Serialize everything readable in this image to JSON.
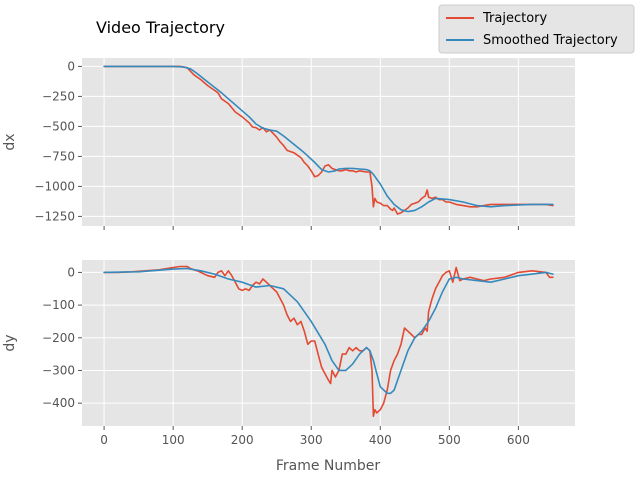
{
  "figure": {
    "title": "Video Trajectory",
    "background": "#ffffff",
    "axes_facecolor": "#e5e5e5",
    "grid_color": "#ffffff"
  },
  "chart_data": [
    {
      "type": "line",
      "title": "Video Trajectory",
      "xlabel": "",
      "ylabel": "dx",
      "xlim": [
        -32,
        682
      ],
      "ylim": [
        -1330,
        70
      ],
      "xticks": [
        0,
        100,
        200,
        300,
        400,
        500,
        600
      ],
      "yticks": [
        0,
        -250,
        -500,
        -750,
        -1000,
        -1250
      ],
      "grid": true,
      "legend": "top-right",
      "series": [
        {
          "name": "Trajectory",
          "color": "#e24a33",
          "x": [
            0,
            20,
            40,
            60,
            80,
            100,
            110,
            120,
            125,
            130,
            140,
            150,
            160,
            165,
            170,
            180,
            190,
            200,
            210,
            215,
            220,
            225,
            230,
            235,
            240,
            245,
            250,
            255,
            260,
            265,
            270,
            275,
            280,
            285,
            290,
            295,
            300,
            305,
            310,
            315,
            320,
            325,
            330,
            335,
            340,
            345,
            350,
            355,
            360,
            365,
            370,
            375,
            380,
            385,
            388,
            390,
            392,
            395,
            400,
            405,
            410,
            415,
            418,
            420,
            425,
            430,
            435,
            440,
            445,
            450,
            455,
            460,
            465,
            468,
            470,
            475,
            480,
            485,
            490,
            495,
            500,
            510,
            520,
            530,
            540,
            550,
            560,
            580,
            600,
            620,
            640,
            650
          ],
          "values": [
            0,
            0,
            0,
            0,
            0,
            0,
            0,
            -10,
            -40,
            -70,
            -110,
            -160,
            -200,
            -220,
            -270,
            -310,
            -380,
            -420,
            -470,
            -505,
            -510,
            -530,
            -510,
            -545,
            -530,
            -560,
            -590,
            -630,
            -660,
            -700,
            -710,
            -720,
            -740,
            -760,
            -800,
            -830,
            -870,
            -920,
            -910,
            -880,
            -830,
            -820,
            -850,
            -860,
            -870,
            -870,
            -860,
            -870,
            -870,
            -880,
            -870,
            -875,
            -880,
            -880,
            -1000,
            -1170,
            -1100,
            -1130,
            -1140,
            -1160,
            -1160,
            -1190,
            -1200,
            -1180,
            -1230,
            -1220,
            -1200,
            -1180,
            -1150,
            -1140,
            -1130,
            -1100,
            -1080,
            -1030,
            -1090,
            -1100,
            -1090,
            -1110,
            -1110,
            -1130,
            -1130,
            -1150,
            -1160,
            -1170,
            -1170,
            -1160,
            -1150,
            -1150,
            -1150,
            -1150,
            -1150,
            -1160
          ]
        },
        {
          "name": "Smoothed Trajectory",
          "color": "#348abd",
          "x": [
            0,
            50,
            100,
            115,
            125,
            135,
            150,
            170,
            190,
            210,
            220,
            230,
            240,
            250,
            260,
            275,
            290,
            305,
            315,
            325,
            335,
            340,
            350,
            360,
            370,
            380,
            385,
            390,
            395,
            400,
            410,
            420,
            430,
            440,
            450,
            460,
            470,
            480,
            500,
            520,
            540,
            560,
            580,
            600,
            620,
            640,
            650
          ],
          "values": [
            0,
            0,
            0,
            -5,
            -20,
            -60,
            -130,
            -220,
            -320,
            -420,
            -480,
            -515,
            -530,
            -540,
            -580,
            -650,
            -720,
            -800,
            -860,
            -880,
            -870,
            -855,
            -850,
            -850,
            -855,
            -860,
            -870,
            -900,
            -940,
            -980,
            -1080,
            -1150,
            -1195,
            -1210,
            -1200,
            -1170,
            -1130,
            -1100,
            -1110,
            -1130,
            -1160,
            -1170,
            -1160,
            -1155,
            -1150,
            -1150,
            -1150
          ]
        }
      ]
    },
    {
      "type": "line",
      "xlabel": "Frame Number",
      "ylabel": "dy",
      "xlim": [
        -32,
        682
      ],
      "ylim": [
        -470,
        38
      ],
      "xticks": [
        0,
        100,
        200,
        300,
        400,
        500,
        600
      ],
      "yticks": [
        0,
        -100,
        -200,
        -300,
        -400
      ],
      "grid": true,
      "series": [
        {
          "name": "Trajectory",
          "color": "#e24a33",
          "x": [
            0,
            20,
            40,
            60,
            80,
            100,
            110,
            120,
            125,
            130,
            135,
            140,
            150,
            160,
            165,
            170,
            175,
            180,
            185,
            190,
            195,
            200,
            205,
            210,
            215,
            220,
            225,
            230,
            235,
            240,
            245,
            250,
            255,
            260,
            265,
            270,
            275,
            280,
            285,
            290,
            295,
            300,
            305,
            310,
            315,
            320,
            325,
            328,
            330,
            335,
            340,
            345,
            350,
            355,
            360,
            365,
            370,
            375,
            380,
            385,
            388,
            390,
            392,
            395,
            400,
            405,
            410,
            415,
            420,
            425,
            430,
            435,
            440,
            445,
            450,
            455,
            460,
            465,
            468,
            470,
            475,
            480,
            485,
            490,
            495,
            500,
            505,
            510,
            515,
            520,
            530,
            540,
            550,
            560,
            580,
            600,
            620,
            640,
            645,
            650
          ],
          "values": [
            0,
            0,
            2,
            5,
            8,
            15,
            18,
            18,
            12,
            8,
            5,
            0,
            -10,
            -15,
            0,
            5,
            -10,
            5,
            -10,
            -30,
            -50,
            -55,
            -50,
            -55,
            -40,
            -30,
            -35,
            -20,
            -30,
            -40,
            -50,
            -60,
            -80,
            -100,
            -130,
            -150,
            -140,
            -160,
            -150,
            -180,
            -220,
            -210,
            -210,
            -250,
            -290,
            -310,
            -330,
            -340,
            -300,
            -320,
            -300,
            -250,
            -250,
            -230,
            -240,
            -230,
            -240,
            -240,
            -230,
            -240,
            -300,
            -440,
            -420,
            -430,
            -420,
            -400,
            -360,
            -300,
            -270,
            -250,
            -220,
            -170,
            -180,
            -190,
            -200,
            -190,
            -190,
            -170,
            -180,
            -120,
            -80,
            -50,
            -30,
            -10,
            0,
            5,
            -30,
            15,
            -25,
            -20,
            -15,
            -20,
            -25,
            -20,
            -15,
            0,
            5,
            0,
            -15,
            -15
          ]
        },
        {
          "name": "Smoothed Trajectory",
          "color": "#348abd",
          "x": [
            0,
            50,
            100,
            120,
            140,
            160,
            180,
            200,
            220,
            240,
            260,
            280,
            300,
            320,
            330,
            340,
            350,
            360,
            370,
            380,
            385,
            390,
            395,
            400,
            410,
            415,
            420,
            430,
            440,
            450,
            460,
            470,
            480,
            490,
            500,
            510,
            520,
            540,
            560,
            580,
            600,
            620,
            640,
            650
          ],
          "values": [
            0,
            2,
            10,
            12,
            5,
            -5,
            -20,
            -30,
            -45,
            -40,
            -50,
            -90,
            -150,
            -220,
            -270,
            -300,
            -300,
            -280,
            -250,
            -230,
            -240,
            -270,
            -310,
            -350,
            -370,
            -370,
            -360,
            -300,
            -240,
            -200,
            -180,
            -150,
            -110,
            -60,
            -20,
            -15,
            -20,
            -25,
            -30,
            -20,
            -10,
            -5,
            0,
            -5
          ]
        }
      ]
    }
  ]
}
